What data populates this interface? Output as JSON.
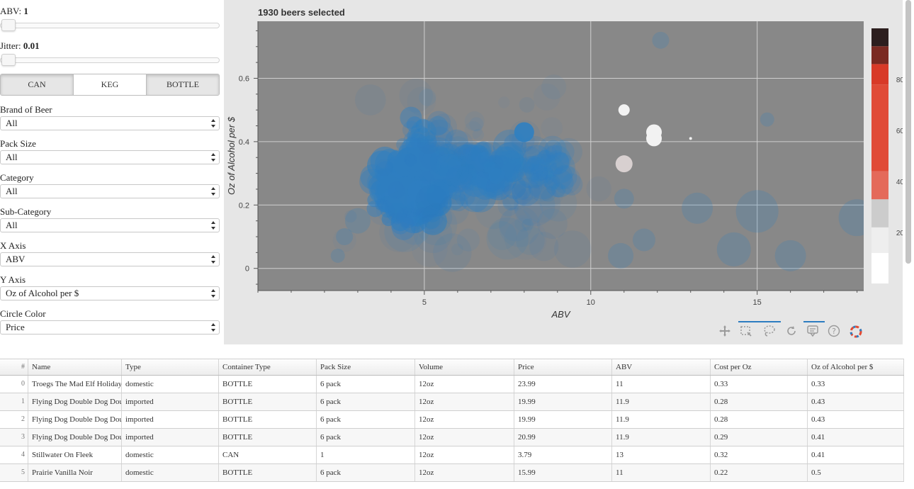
{
  "controls": {
    "abv": {
      "label": "ABV: ",
      "value": "1"
    },
    "jitter": {
      "label": "Jitter: ",
      "value": "0.01"
    },
    "container_buttons": [
      "CAN",
      "KEG",
      "BOTTLE"
    ],
    "fields": [
      {
        "name": "brand",
        "label": "Brand of Beer",
        "value": "All"
      },
      {
        "name": "pack-size",
        "label": "Pack Size",
        "value": "All"
      },
      {
        "name": "category",
        "label": "Category",
        "value": "All"
      },
      {
        "name": "sub-category",
        "label": "Sub-Category",
        "value": "All"
      },
      {
        "name": "x-axis",
        "label": "X Axis",
        "value": "ABV"
      },
      {
        "name": "y-axis",
        "label": "Y Axis",
        "value": "Oz of Alcohol per $"
      },
      {
        "name": "circle-color",
        "label": "Circle Color",
        "value": "Price"
      }
    ]
  },
  "plot": {
    "title": "1930 beers selected",
    "background": "#888888",
    "point_color": "#2f7fc1"
  },
  "chart_data": {
    "type": "scatter",
    "title": "1930 beers selected",
    "xlabel": "ABV",
    "ylabel": "Oz of Alcohol per $",
    "xlim": [
      0,
      18.2
    ],
    "ylim": [
      -0.07,
      0.78
    ],
    "xticks": [
      5,
      10,
      15
    ],
    "yticks": [
      0,
      0.2,
      0.4,
      0.6
    ],
    "grid": true,
    "colorbar": {
      "ticks": [
        20,
        40,
        60,
        80
      ],
      "range": [
        0,
        100
      ]
    },
    "highlighted": [
      {
        "x": 11.0,
        "y": 0.5
      },
      {
        "x": 11.9,
        "y": 0.43
      },
      {
        "x": 11.9,
        "y": 0.41
      },
      {
        "x": 11.0,
        "y": 0.33
      },
      {
        "x": 13.0,
        "y": 0.41
      }
    ]
  },
  "toolbar": {
    "tools": [
      "pan-tool-icon",
      "box-select-icon",
      "lasso-select-icon",
      "reset-icon",
      "hover-icon",
      "help-icon",
      "bokeh-logo-icon"
    ]
  },
  "table": {
    "columns": [
      "#",
      "Name",
      "Type",
      "Container Type",
      "Pack Size",
      "Volume",
      "Price",
      "ABV",
      "Cost per Oz",
      "Oz of Alcohol per $"
    ],
    "rows": [
      [
        "0",
        "Troegs The Mad Elf Holiday",
        "domestic",
        "BOTTLE",
        "6 pack",
        "12oz",
        "23.99",
        "11",
        "0.33",
        "0.33"
      ],
      [
        "1",
        "Flying Dog Double Dog Dou",
        "imported",
        "BOTTLE",
        "6 pack",
        "12oz",
        "19.99",
        "11.9",
        "0.28",
        "0.43"
      ],
      [
        "2",
        "Flying Dog Double Dog Dou",
        "imported",
        "BOTTLE",
        "6 pack",
        "12oz",
        "19.99",
        "11.9",
        "0.28",
        "0.43"
      ],
      [
        "3",
        "Flying Dog Double Dog Dou",
        "imported",
        "BOTTLE",
        "6 pack",
        "12oz",
        "20.99",
        "11.9",
        "0.29",
        "0.41"
      ],
      [
        "4",
        "Stillwater On Fleek",
        "domestic",
        "CAN",
        "1",
        "12oz",
        "3.79",
        "13",
        "0.32",
        "0.41"
      ],
      [
        "5",
        "Prairie Vanilla Noir",
        "domestic",
        "BOTTLE",
        "6 pack",
        "12oz",
        "15.99",
        "11",
        "0.22",
        "0.5"
      ]
    ]
  }
}
